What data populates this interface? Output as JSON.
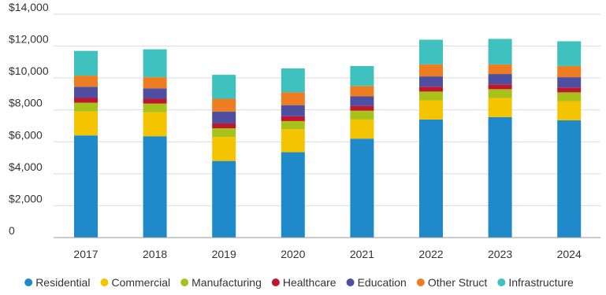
{
  "chart_data": {
    "type": "bar",
    "stacked": true,
    "categories": [
      "2017",
      "2018",
      "2019",
      "2020",
      "2021",
      "2022",
      "2023",
      "2024"
    ],
    "ylim": [
      0,
      14000
    ],
    "y_ticks": [
      "0",
      "$2,000",
      "$4,000",
      "$6,000",
      "$8,000",
      "$10,000",
      "$12,000",
      "$14,000"
    ],
    "grid": "horizontal",
    "legend_position": "bottom",
    "series": [
      {
        "name": "Residential",
        "color": "#1f8ac9",
        "values": [
          6400,
          6350,
          4800,
          5350,
          6200,
          7400,
          7550,
          7350
        ]
      },
      {
        "name": "Commercial",
        "color": "#f5c400",
        "values": [
          1500,
          1500,
          1500,
          1450,
          1200,
          1200,
          1200,
          1200
        ]
      },
      {
        "name": "Manufacturing",
        "color": "#a9c11b",
        "values": [
          550,
          550,
          550,
          500,
          550,
          550,
          550,
          550
        ]
      },
      {
        "name": "Healthcare",
        "color": "#c0172d",
        "values": [
          300,
          300,
          300,
          300,
          300,
          300,
          300,
          300
        ]
      },
      {
        "name": "Education",
        "color": "#4e4fa0",
        "values": [
          700,
          650,
          750,
          700,
          600,
          650,
          650,
          650
        ]
      },
      {
        "name": "Other Struct",
        "color": "#ee7d22",
        "values": [
          700,
          700,
          800,
          800,
          650,
          750,
          600,
          700
        ]
      },
      {
        "name": "Infrastructure",
        "color": "#3ec1bf",
        "values": [
          1550,
          1750,
          1500,
          1500,
          1250,
          1550,
          1600,
          1550
        ]
      }
    ]
  }
}
